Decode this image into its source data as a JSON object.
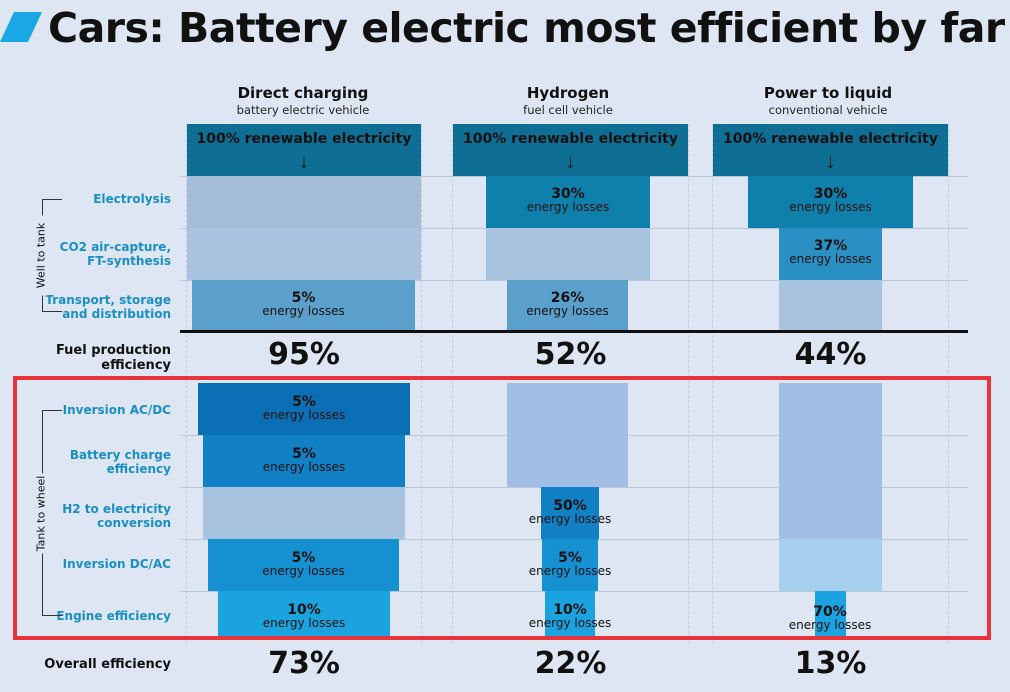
{
  "title": "Cars: Battery electric most efficient by far",
  "colors": {
    "mark": "#1aa7e6",
    "renewable": "#0f6e93",
    "faded": "#a7c0d8",
    "highlight": "#e8333a"
  },
  "columns": [
    {
      "title": "Direct charging",
      "subtitle": "battery electric vehicle",
      "source": "100% renewable electricity",
      "arrow": "↓"
    },
    {
      "title": "Hydrogen",
      "subtitle": "fuel cell vehicle",
      "source": "100% renewable electricity",
      "arrow": "↓"
    },
    {
      "title": "Power to liquid",
      "subtitle": "conventional vehicle",
      "source": "100% renewable electricity",
      "arrow": "↓"
    }
  ],
  "groups": {
    "well_to_tank": "Well to tank",
    "tank_to_wheel": "Tank to wheel"
  },
  "rows": {
    "electrolysis": "Electrolysis",
    "co2": [
      "CO2 air-capture,",
      "FT-synthesis"
    ],
    "transport": [
      "Transport, storage",
      "and distribution"
    ],
    "fuel_production": [
      "Fuel production",
      "efficiency"
    ],
    "inversion_acdc": "Inversion AC/DC",
    "battery": [
      "Battery charge",
      "efficiency"
    ],
    "h2": [
      "H2 to electricity",
      "conversion"
    ],
    "inversion_dcac": "Inversion DC/AC",
    "engine": "Engine efficiency",
    "overall": "Overall efficiency"
  },
  "loss_label": "energy losses",
  "chart_data": {
    "type": "table",
    "title": "Cars: Battery electric most efficient by far",
    "columns": [
      "Direct charging",
      "Hydrogen",
      "Power to liquid"
    ],
    "stages": [
      "Electrolysis",
      "CO2 air-capture, FT-synthesis",
      "Transport, storage and distribution",
      "Inversion AC/DC",
      "Battery charge efficiency",
      "H2 to electricity conversion",
      "Inversion DC/AC",
      "Engine efficiency"
    ],
    "energy_losses_pct": {
      "Direct charging": [
        null,
        null,
        5,
        5,
        5,
        null,
        5,
        10
      ],
      "Hydrogen": [
        30,
        null,
        26,
        null,
        null,
        50,
        5,
        10
      ],
      "Power to liquid": [
        30,
        37,
        null,
        null,
        null,
        null,
        null,
        70
      ]
    },
    "fuel_production_efficiency": [
      "95%",
      "52%",
      "44%"
    ],
    "overall_efficiency": [
      "73%",
      "22%",
      "13%"
    ]
  }
}
